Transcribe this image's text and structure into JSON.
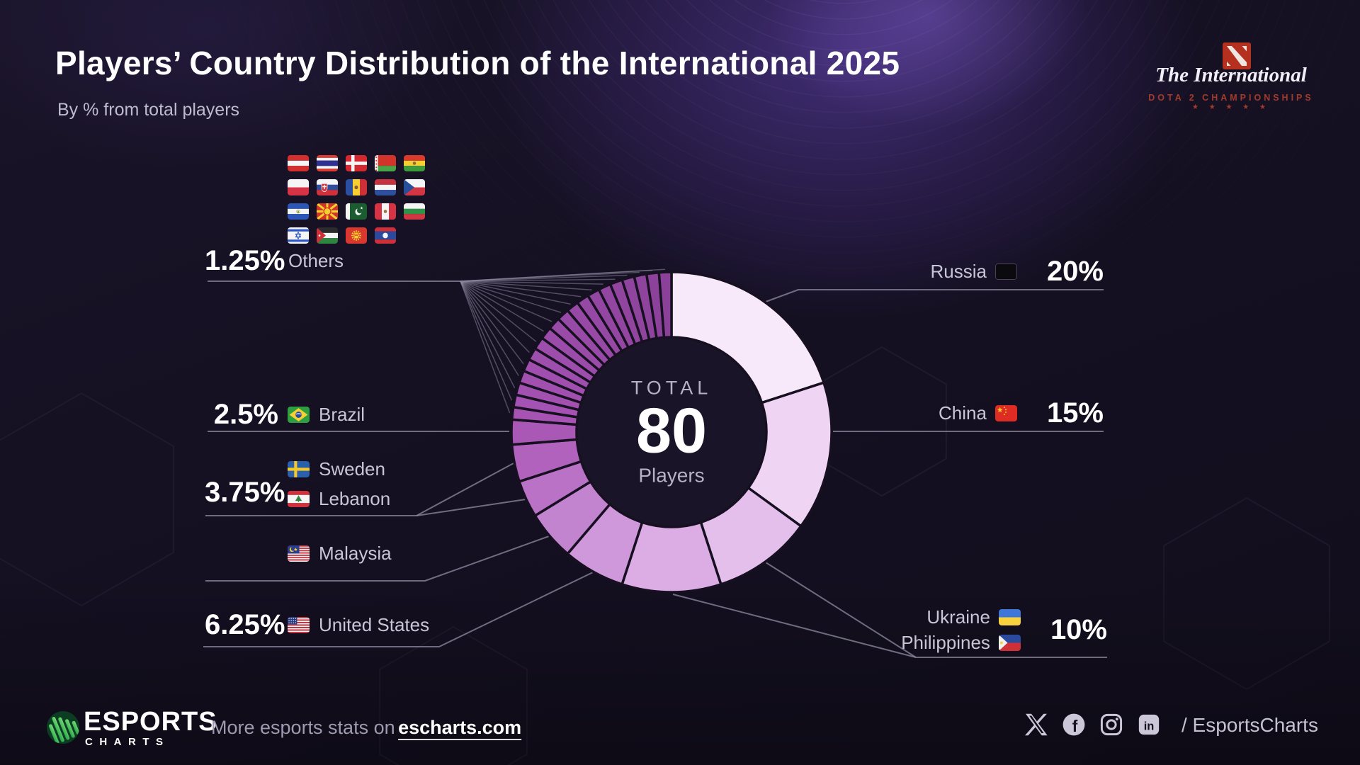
{
  "header": {
    "title": "Players’ Country Distribution of the International 2025",
    "subtitle": "By % from total players"
  },
  "event_logo": {
    "script_text": "The International",
    "caps_text": "DOTA 2 CHAMPIONSHIPS",
    "stars": "★ ★ ★ ★ ★"
  },
  "chart_data": {
    "type": "donut",
    "title": "Players’ Country Distribution of the International 2025",
    "unit": "% from total players",
    "total_players": 80,
    "center": {
      "top": "TOTAL",
      "value": "80",
      "bottom": "Players"
    },
    "gap_color": "#161021",
    "slices": [
      {
        "name": "Russia",
        "players": 16,
        "pct": 20,
        "color": "#f7e9fa",
        "flag": "russia"
      },
      {
        "name": "China",
        "players": 12,
        "pct": 15,
        "color": "#efd4f3",
        "flag": "china"
      },
      {
        "name": "Ukraine",
        "players": 8,
        "pct": 10,
        "color": "#e4bfec",
        "flag": "ukraine"
      },
      {
        "name": "Philippines",
        "players": 8,
        "pct": 10,
        "color": "#dcace4",
        "flag": "philippines"
      },
      {
        "name": "United States",
        "players": 5,
        "pct": 6.25,
        "color": "#cf98da",
        "flag": "usa"
      },
      {
        "name": "Malaysia",
        "players": 4,
        "pct": 5,
        "color": "#c384cf",
        "flag": "malaysia"
      },
      {
        "name": "Lebanon",
        "players": 3,
        "pct": 3.75,
        "color": "#b972c6",
        "flag": "lebanon"
      },
      {
        "name": "Sweden",
        "players": 3,
        "pct": 3.75,
        "color": "#b062bd",
        "flag": "sweden"
      },
      {
        "name": "Brazil",
        "players": 2,
        "pct": 2.5,
        "color": "#a958b6",
        "flag": "brazil"
      },
      {
        "name": "Austria",
        "players": 1,
        "pct": 1.25,
        "color": "#a653b4",
        "flag": "austria",
        "group": "Others"
      },
      {
        "name": "Thailand",
        "players": 1,
        "pct": 1.25,
        "color": "#a452b3",
        "flag": "thailand",
        "group": "Others"
      },
      {
        "name": "Denmark",
        "players": 1,
        "pct": 1.25,
        "color": "#a351b1",
        "flag": "denmark",
        "group": "Others"
      },
      {
        "name": "Belarus",
        "players": 1,
        "pct": 1.25,
        "color": "#a150b0",
        "flag": "belarus",
        "group": "Others"
      },
      {
        "name": "Bolivia",
        "players": 1,
        "pct": 1.25,
        "color": "#a04fae",
        "flag": "bolivia",
        "group": "Others"
      },
      {
        "name": "Poland",
        "players": 1,
        "pct": 1.25,
        "color": "#9e4ead",
        "flag": "poland",
        "group": "Others"
      },
      {
        "name": "Slovakia",
        "players": 1,
        "pct": 1.25,
        "color": "#9d4dab",
        "flag": "slovakia",
        "group": "Others"
      },
      {
        "name": "Moldova",
        "players": 1,
        "pct": 1.25,
        "color": "#9b4caa",
        "flag": "moldova",
        "group": "Others"
      },
      {
        "name": "Netherlands",
        "players": 1,
        "pct": 1.25,
        "color": "#9a4ba8",
        "flag": "netherlands",
        "group": "Others"
      },
      {
        "name": "Czech Republic",
        "players": 1,
        "pct": 1.25,
        "color": "#984aa7",
        "flag": "czechia",
        "group": "Others"
      },
      {
        "name": "El Salvador",
        "players": 1,
        "pct": 1.25,
        "color": "#9749a5",
        "flag": "el_salvador",
        "group": "Others"
      },
      {
        "name": "North Macedonia",
        "players": 1,
        "pct": 1.25,
        "color": "#9548a4",
        "flag": "north_macedonia",
        "group": "Others"
      },
      {
        "name": "Pakistan",
        "players": 1,
        "pct": 1.25,
        "color": "#9447a2",
        "flag": "pakistan",
        "group": "Others"
      },
      {
        "name": "Peru",
        "players": 1,
        "pct": 1.25,
        "color": "#9246a1",
        "flag": "peru",
        "group": "Others"
      },
      {
        "name": "Bulgaria",
        "players": 1,
        "pct": 1.25,
        "color": "#91459f",
        "flag": "bulgaria",
        "group": "Others"
      },
      {
        "name": "Israel",
        "players": 1,
        "pct": 1.25,
        "color": "#8f449e",
        "flag": "israel",
        "group": "Others"
      },
      {
        "name": "Jordan",
        "players": 1,
        "pct": 1.25,
        "color": "#8e439c",
        "flag": "jordan",
        "group": "Others"
      },
      {
        "name": "Kyrgyzstan",
        "players": 1,
        "pct": 1.25,
        "color": "#8c429b",
        "flag": "kyrgyzstan",
        "group": "Others"
      },
      {
        "name": "Laos",
        "players": 1,
        "pct": 1.25,
        "color": "#8b4199",
        "flag": "laos",
        "group": "Others"
      }
    ]
  },
  "callouts": {
    "others": {
      "pct": "1.25%",
      "label": "Others"
    },
    "brazil": {
      "pct": "2.5%",
      "name": "Brazil"
    },
    "sweden_lebanon": {
      "pct": "3.75%",
      "rows": [
        {
          "name": "Sweden",
          "flag": "sweden"
        },
        {
          "name": "Lebanon",
          "flag": "lebanon"
        }
      ]
    },
    "malaysia": {
      "name": "Malaysia"
    },
    "united_states": {
      "pct": "6.25%",
      "name": "United States"
    },
    "russia": {
      "name": "Russia",
      "pct": "20%"
    },
    "china": {
      "name": "China",
      "pct": "15%"
    },
    "ukraine_philippines": {
      "pct": "10%",
      "rows": [
        {
          "name": "Ukraine",
          "flag": "ukraine"
        },
        {
          "name": "Philippines",
          "flag": "philippines"
        }
      ]
    }
  },
  "footer": {
    "brand_top": "ESPORTS",
    "brand_bottom": "CHARTS",
    "more_text": "More esports stats on",
    "link_text": "escharts.com",
    "handle": "/ EsportsCharts",
    "socials": [
      "x",
      "facebook",
      "instagram",
      "linkedin"
    ]
  }
}
